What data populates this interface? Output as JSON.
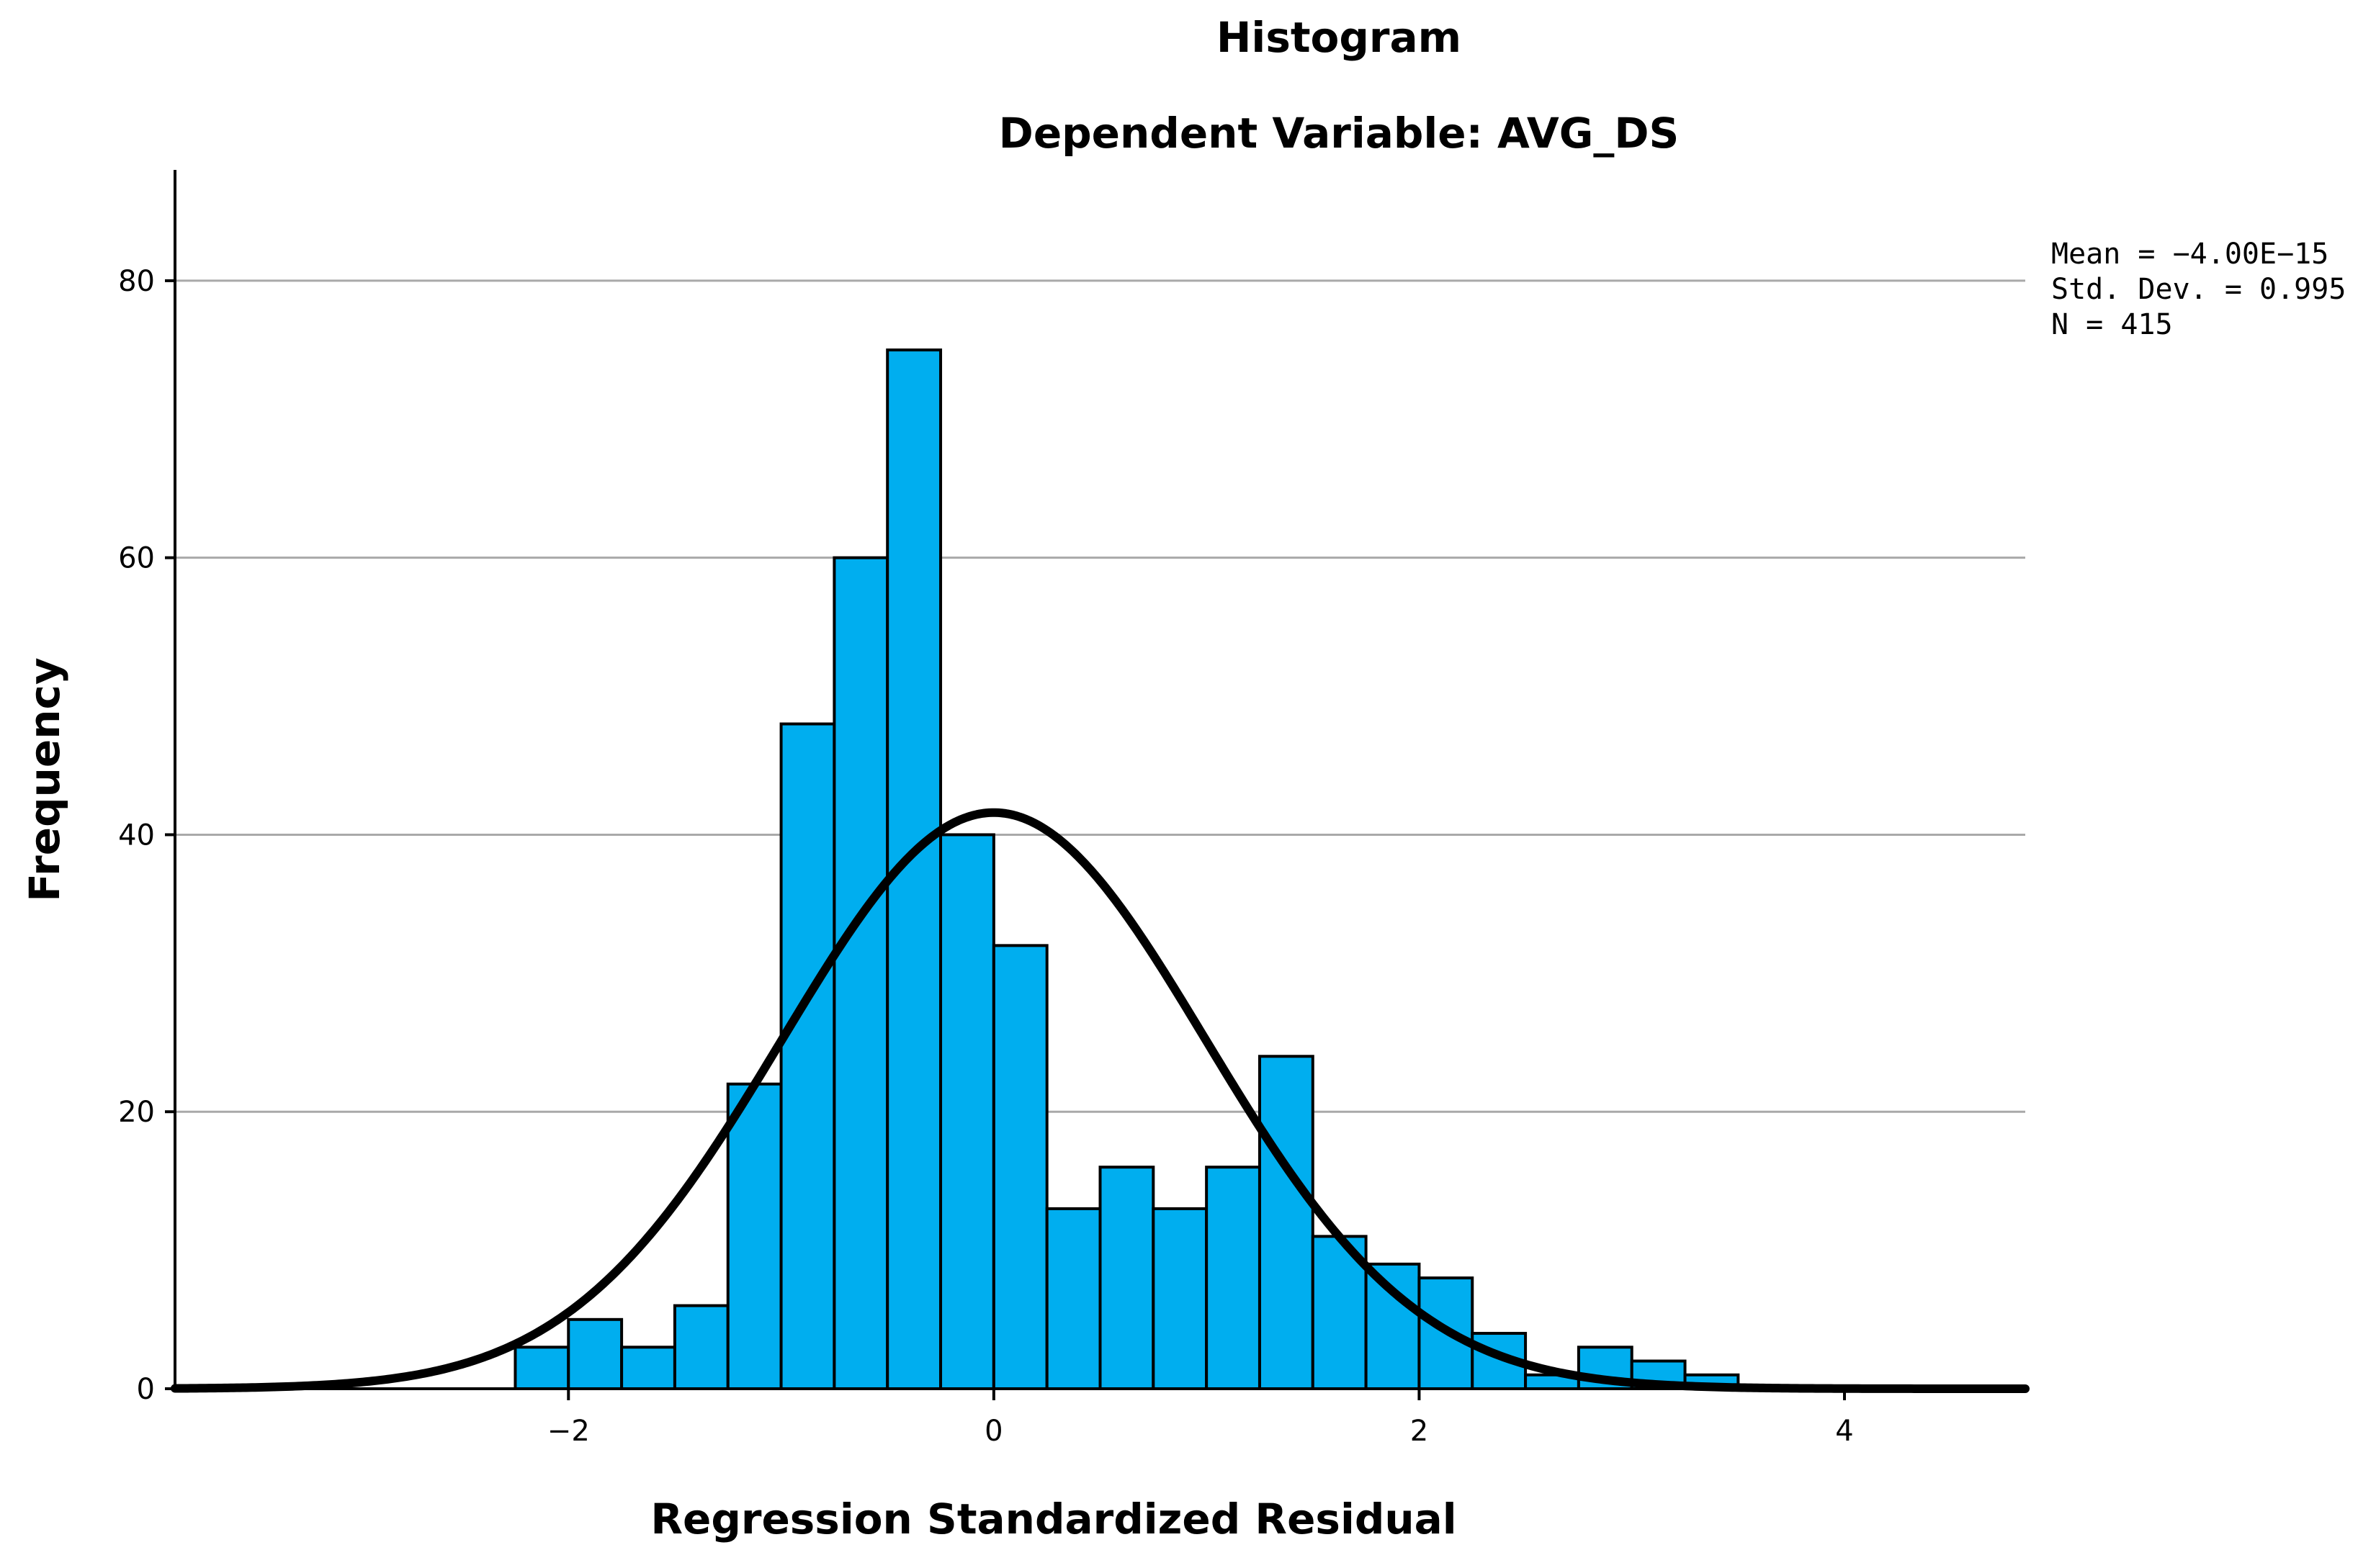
{
  "chart_data": {
    "type": "bar",
    "subtype": "histogram",
    "title": "Histogram",
    "subtitle": "Dependent Variable: AVG_DS",
    "xlabel": "Regression Standardized Residual",
    "ylabel": "Frequency",
    "xlim": [
      -3.85,
      4.85
    ],
    "ylim": [
      0,
      88
    ],
    "x_ticks": [
      -2,
      0,
      2,
      4
    ],
    "x_tick_labels": [
      "−2",
      "0",
      "2",
      "4"
    ],
    "y_ticks": [
      0,
      20,
      40,
      60,
      80
    ],
    "y_tick_labels": [
      "0",
      "20",
      "40",
      "60",
      "80"
    ],
    "grid": "horizontal",
    "bin_width": 0.25,
    "bins": [
      {
        "start": -2.25,
        "end": -2.0,
        "count": 3
      },
      {
        "start": -2.0,
        "end": -1.75,
        "count": 5
      },
      {
        "start": -1.75,
        "end": -1.5,
        "count": 3
      },
      {
        "start": -1.5,
        "end": -1.25,
        "count": 6
      },
      {
        "start": -1.25,
        "end": -1.0,
        "count": 22
      },
      {
        "start": -1.0,
        "end": -0.75,
        "count": 48
      },
      {
        "start": -0.75,
        "end": -0.5,
        "count": 60
      },
      {
        "start": -0.5,
        "end": -0.25,
        "count": 75
      },
      {
        "start": -0.25,
        "end": 0.0,
        "count": 40
      },
      {
        "start": 0.0,
        "end": 0.25,
        "count": 32
      },
      {
        "start": 0.25,
        "end": 0.5,
        "count": 13
      },
      {
        "start": 0.5,
        "end": 0.75,
        "count": 16
      },
      {
        "start": 0.75,
        "end": 1.0,
        "count": 13
      },
      {
        "start": 1.0,
        "end": 1.25,
        "count": 16
      },
      {
        "start": 1.25,
        "end": 1.5,
        "count": 24
      },
      {
        "start": 1.5,
        "end": 1.75,
        "count": 11
      },
      {
        "start": 1.75,
        "end": 2.0,
        "count": 9
      },
      {
        "start": 2.0,
        "end": 2.25,
        "count": 8
      },
      {
        "start": 2.25,
        "end": 2.5,
        "count": 4
      },
      {
        "start": 2.5,
        "end": 2.75,
        "count": 1
      },
      {
        "start": 2.75,
        "end": 3.0,
        "count": 3
      },
      {
        "start": 3.0,
        "end": 3.25,
        "count": 2
      },
      {
        "start": 3.25,
        "end": 3.5,
        "count": 1
      }
    ],
    "normal_curve": {
      "mean": 0,
      "sd": 0.995,
      "n": 415
    },
    "annotation": {
      "position": "top-right",
      "lines": [
        "Mean = −4.00E−15",
        "Std. Dev. = 0.995",
        "N = 415"
      ]
    },
    "colors": {
      "bar_fill": "#00AEEF",
      "bar_stroke": "#000000",
      "curve": "#000000",
      "grid": "#A9A9A9",
      "axis": "#000000"
    }
  }
}
